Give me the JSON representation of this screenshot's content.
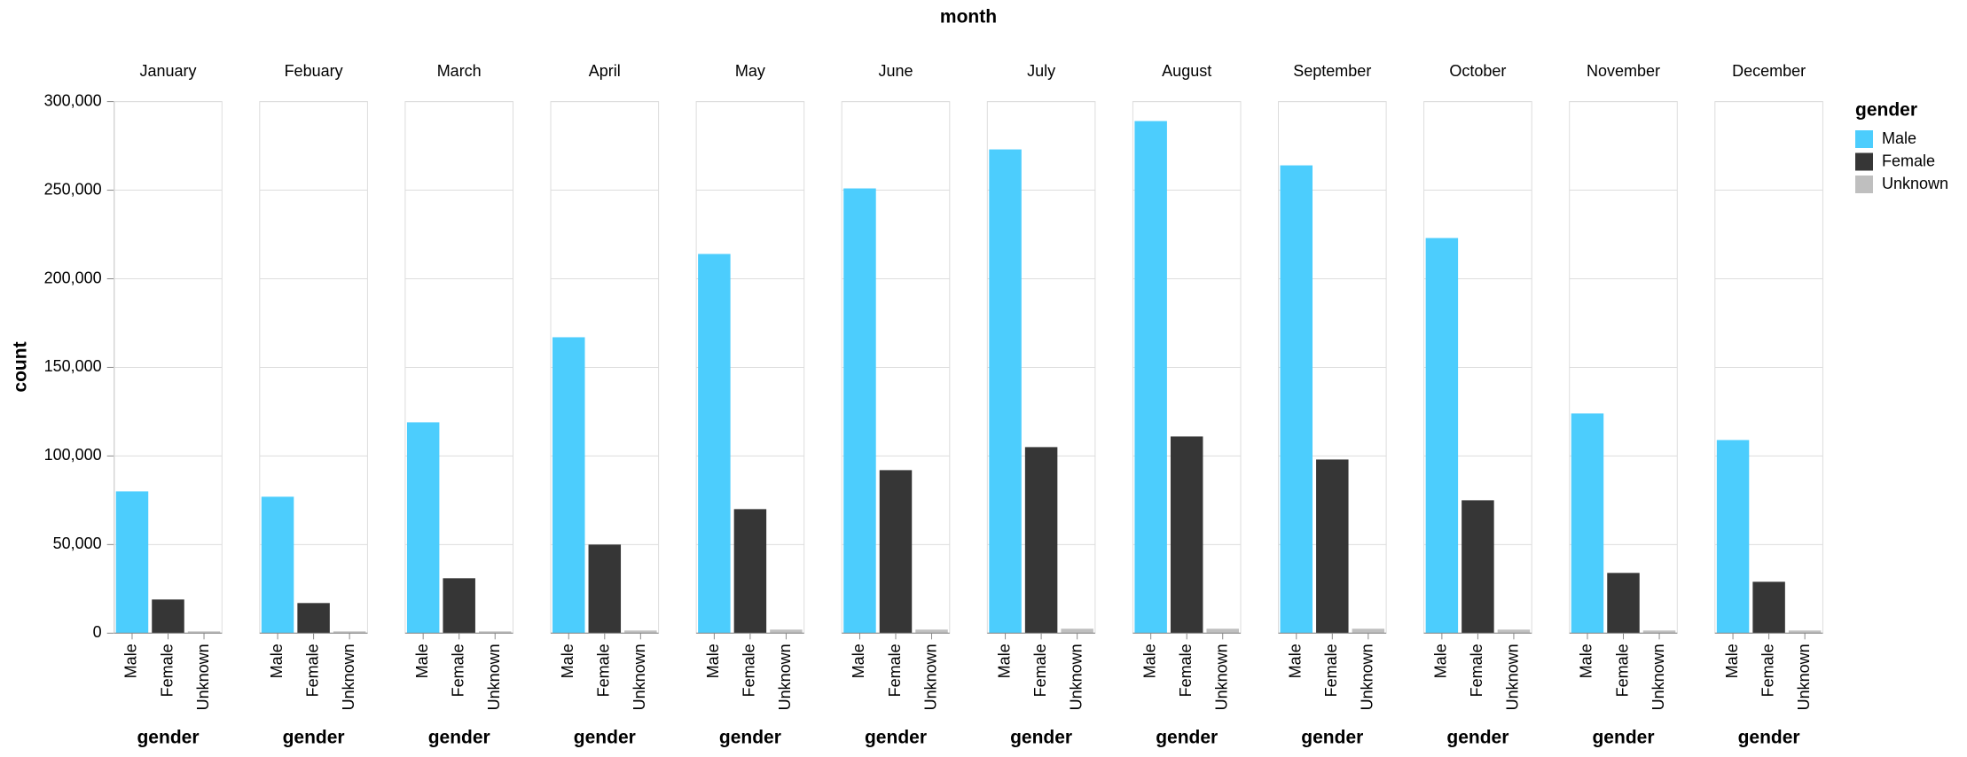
{
  "chart_data": {
    "type": "bar",
    "title": "month",
    "x_label": "gender",
    "y_label": "count",
    "legend_title": "gender",
    "categories": [
      "Male",
      "Female",
      "Unknown"
    ],
    "colors": [
      "#4ccdfd",
      "#363636",
      "#bfbfbf"
    ],
    "ylim": [
      0,
      300000
    ],
    "yticks": [
      0,
      {
        "value": 50000,
        "label": "50,000"
      },
      {
        "value": 100000,
        "label": "100,000"
      },
      {
        "value": 150000,
        "label": "150,000"
      },
      {
        "value": 200000,
        "label": "200,000"
      },
      {
        "value": 250000,
        "label": "250,000"
      },
      {
        "value": 300000,
        "label": "300,000"
      }
    ],
    "grid": true,
    "panels": [
      {
        "title": "January",
        "values": [
          80000,
          19000,
          1000
        ]
      },
      {
        "title": "Febuary",
        "values": [
          77000,
          17000,
          1000
        ]
      },
      {
        "title": "March",
        "values": [
          119000,
          31000,
          1000
        ]
      },
      {
        "title": "April",
        "values": [
          167000,
          50000,
          1500
        ]
      },
      {
        "title": "May",
        "values": [
          214000,
          70000,
          2000
        ]
      },
      {
        "title": "June",
        "values": [
          251000,
          92000,
          2000
        ]
      },
      {
        "title": "July",
        "values": [
          273000,
          105000,
          2500
        ]
      },
      {
        "title": "August",
        "values": [
          289000,
          111000,
          2500
        ]
      },
      {
        "title": "September",
        "values": [
          264000,
          98000,
          2500
        ]
      },
      {
        "title": "October",
        "values": [
          223000,
          75000,
          2000
        ]
      },
      {
        "title": "November",
        "values": [
          124000,
          34000,
          1500
        ]
      },
      {
        "title": "December",
        "values": [
          109000,
          29000,
          1500
        ]
      }
    ]
  }
}
